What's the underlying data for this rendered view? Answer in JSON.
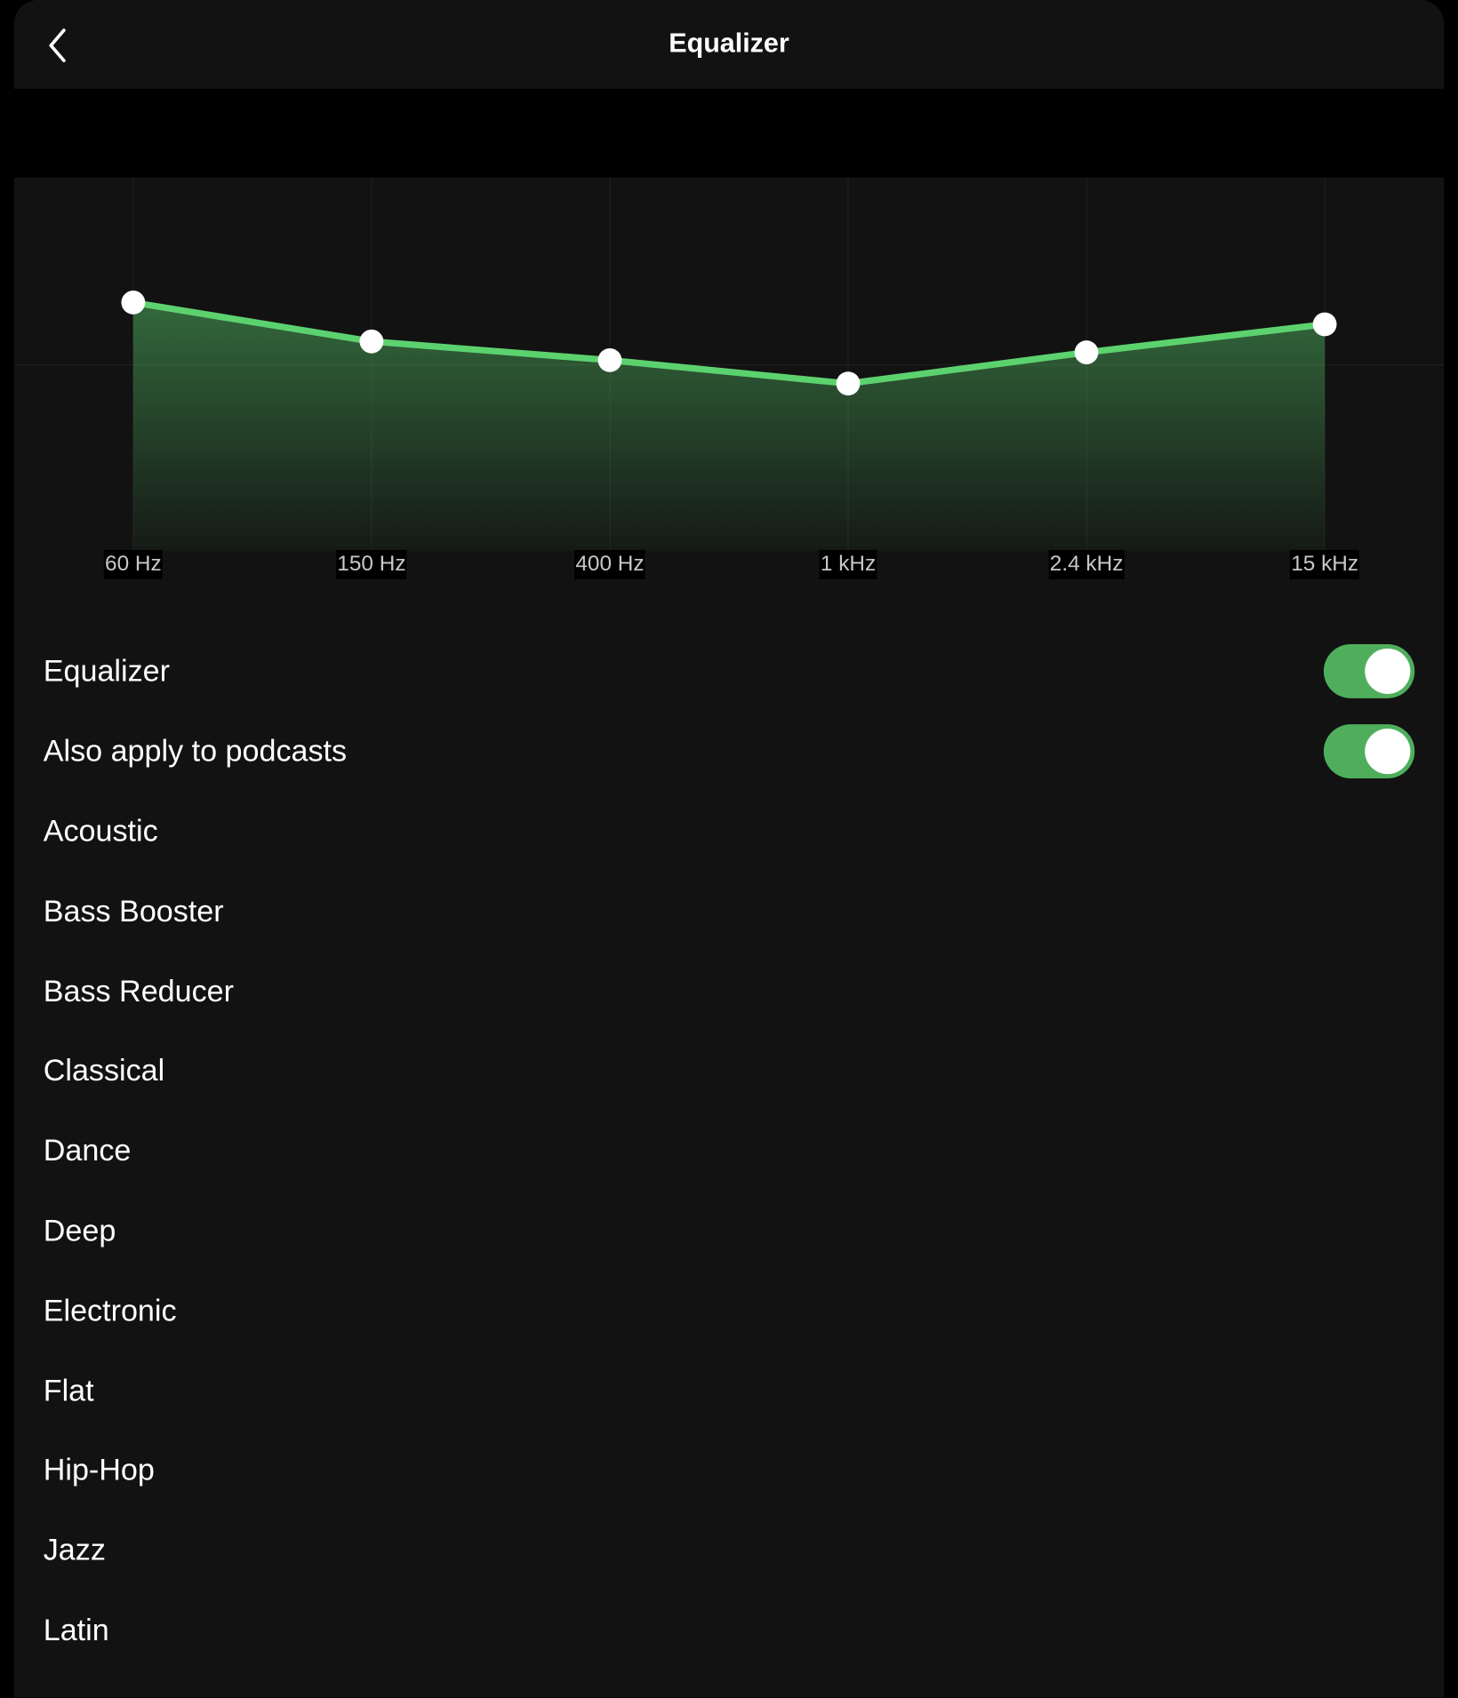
{
  "header": {
    "title": "Equalizer",
    "back_icon": "chevron-left-icon"
  },
  "colors": {
    "accent": "#5cd26f",
    "toggle_on": "#4fae5c",
    "background": "#121212"
  },
  "chart_data": {
    "type": "area",
    "categories": [
      "60 Hz",
      "150 Hz",
      "400 Hz",
      "1 kHz",
      "2.4 kHz",
      "15 kHz"
    ],
    "values": [
      4.0,
      1.5,
      0.3,
      -1.2,
      0.8,
      2.6
    ],
    "ylim": [
      -12,
      12
    ],
    "grid": true
  },
  "toggles": [
    {
      "label": "Equalizer",
      "on": true
    },
    {
      "label": "Also apply to podcasts",
      "on": true
    }
  ],
  "presets": [
    "Acoustic",
    "Bass Booster",
    "Bass Reducer",
    "Classical",
    "Dance",
    "Deep",
    "Electronic",
    "Flat",
    "Hip-Hop",
    "Jazz",
    "Latin"
  ]
}
